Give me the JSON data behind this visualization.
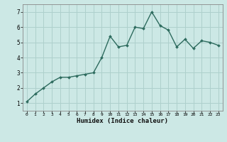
{
  "x": [
    0,
    1,
    2,
    3,
    4,
    5,
    6,
    7,
    8,
    9,
    10,
    11,
    12,
    13,
    14,
    15,
    16,
    17,
    18,
    19,
    20,
    21,
    22,
    23
  ],
  "y": [
    1.1,
    1.6,
    2.0,
    2.4,
    2.7,
    2.7,
    2.8,
    2.9,
    3.0,
    4.0,
    5.4,
    4.7,
    4.8,
    6.0,
    5.9,
    7.0,
    6.1,
    5.8,
    4.7,
    5.2,
    4.6,
    5.1,
    5.0,
    4.8
  ],
  "xlabel": "Humidex (Indice chaleur)",
  "ylim": [
    0.5,
    7.5
  ],
  "xlim": [
    -0.5,
    23.5
  ],
  "yticks": [
    1,
    2,
    3,
    4,
    5,
    6,
    7
  ],
  "xticks": [
    0,
    1,
    2,
    3,
    4,
    5,
    6,
    7,
    8,
    9,
    10,
    11,
    12,
    13,
    14,
    15,
    16,
    17,
    18,
    19,
    20,
    21,
    22,
    23
  ],
  "line_color": "#2d6b5e",
  "marker_color": "#2d6b5e",
  "bg_color": "#cce8e5",
  "grid_color": "#aed0cc",
  "marker": "D",
  "marker_size": 2.0,
  "line_width": 1.0
}
